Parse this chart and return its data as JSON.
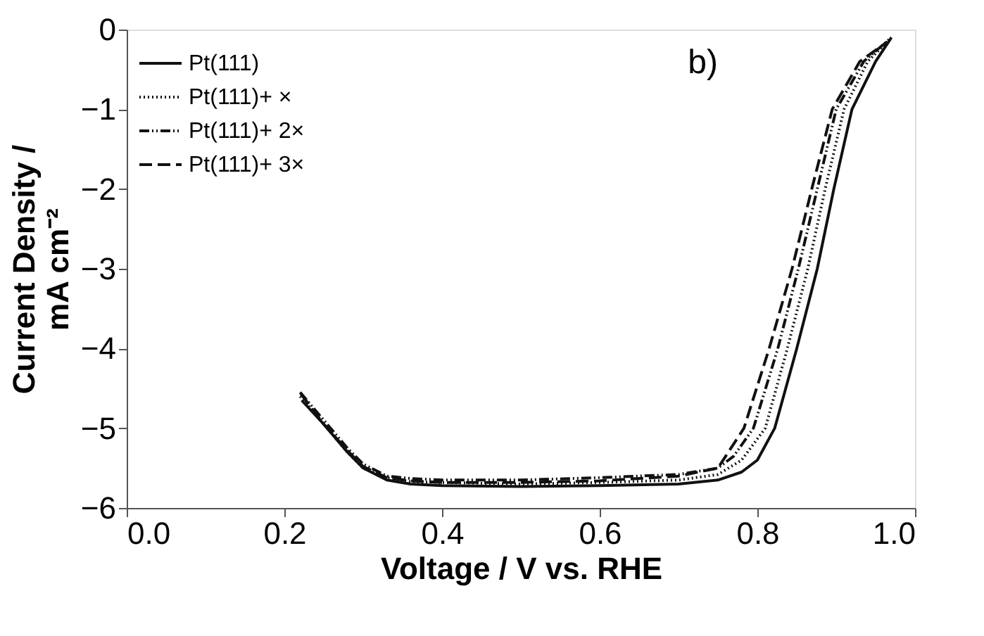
{
  "chart_data": {
    "type": "line",
    "xlabel": "Voltage / V vs. RHE",
    "ylabel": "Current Density /\nmA cm⁻²",
    "xlim": [
      0.0,
      1.0
    ],
    "xticks": [
      {
        "value": 0,
        "label": "0.0"
      },
      0.2,
      0.4,
      0.6,
      0.8,
      {
        "value": 1,
        "label": "1.0"
      }
    ],
    "ylim": [
      -6,
      0
    ],
    "yticks": [
      -6,
      -5,
      -4,
      -3,
      -2,
      -1,
      0
    ],
    "grid": false,
    "legend": "top left",
    "annotations": [
      "b)"
    ],
    "series": [
      {
        "name": "Pt(111)",
        "color": "#111111",
        "line_style": "solid",
        "x": [
          0.222,
          0.25,
          0.28,
          0.3,
          0.33,
          0.36,
          0.4,
          0.5,
          0.6,
          0.7,
          0.75,
          0.78,
          0.8,
          0.822,
          0.85,
          0.876,
          0.897,
          0.92,
          0.95,
          0.97
        ],
        "values": [
          -4.65,
          -4.95,
          -5.3,
          -5.5,
          -5.65,
          -5.7,
          -5.72,
          -5.73,
          -5.72,
          -5.7,
          -5.65,
          -5.55,
          -5.4,
          -5.0,
          -4.0,
          -3.0,
          -2.0,
          -1.0,
          -0.4,
          -0.1
        ]
      },
      {
        "name": "Pt(111)+ ×",
        "color": "#111111",
        "line_style": "dotted",
        "x": [
          0.22,
          0.25,
          0.28,
          0.3,
          0.33,
          0.36,
          0.4,
          0.5,
          0.6,
          0.7,
          0.75,
          0.78,
          0.81,
          0.838,
          0.864,
          0.886,
          0.91,
          0.94,
          0.967
        ],
        "values": [
          -4.6,
          -4.95,
          -5.3,
          -5.5,
          -5.62,
          -5.67,
          -5.68,
          -5.7,
          -5.68,
          -5.65,
          -5.58,
          -5.4,
          -5.0,
          -4.0,
          -3.0,
          -2.0,
          -1.0,
          -0.4,
          -0.13
        ]
      },
      {
        "name": "Pt(111)+ 2×",
        "color": "#111111",
        "line_style": "dashdot",
        "x": [
          0.22,
          0.25,
          0.28,
          0.3,
          0.33,
          0.36,
          0.4,
          0.5,
          0.6,
          0.7,
          0.75,
          0.77,
          0.795,
          0.826,
          0.852,
          0.876,
          0.9,
          0.935,
          0.97
        ],
        "values": [
          -4.55,
          -4.9,
          -5.25,
          -5.45,
          -5.6,
          -5.63,
          -5.65,
          -5.65,
          -5.62,
          -5.58,
          -5.5,
          -5.35,
          -5.0,
          -4.0,
          -3.0,
          -2.0,
          -1.0,
          -0.4,
          -0.1
        ]
      },
      {
        "name": "Pt(111)+ 3×",
        "color": "#111111",
        "line_style": "dashed",
        "x": [
          0.221,
          0.25,
          0.28,
          0.3,
          0.33,
          0.36,
          0.4,
          0.5,
          0.6,
          0.7,
          0.75,
          0.783,
          0.815,
          0.844,
          0.869,
          0.895,
          0.93,
          0.964
        ],
        "values": [
          -4.57,
          -4.95,
          -5.28,
          -5.48,
          -5.62,
          -5.66,
          -5.68,
          -5.68,
          -5.66,
          -5.6,
          -5.5,
          -5.0,
          -4.0,
          -3.0,
          -2.0,
          -1.0,
          -0.4,
          -0.16
        ]
      }
    ]
  }
}
